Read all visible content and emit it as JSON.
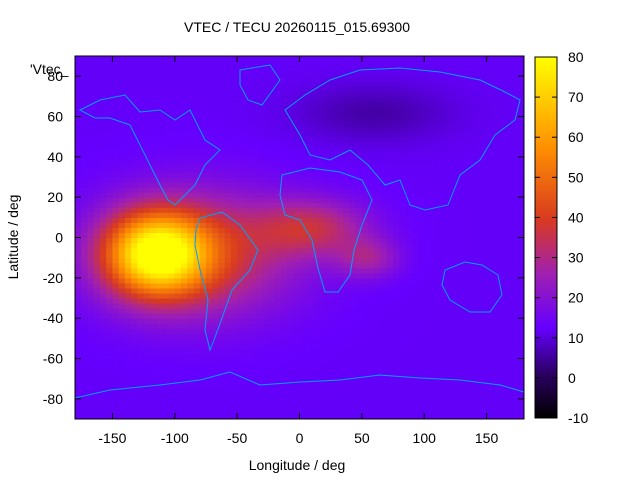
{
  "chart_data": {
    "type": "heatmap",
    "title": "VTEC / TECU 20260115_015.69300",
    "xlabel": "Longitude / deg",
    "ylabel": "Latitude / deg",
    "key_label": "'Vtec_",
    "xlim": [
      -180,
      180
    ],
    "ylim": [
      -90,
      90
    ],
    "xticks": [
      -150,
      -100,
      -50,
      0,
      50,
      100,
      150
    ],
    "yticks": [
      80,
      60,
      40,
      20,
      0,
      -20,
      -40,
      -60,
      -80
    ],
    "xtick_labels": [
      "-150",
      "-100",
      "-50",
      "0",
      "50",
      "100",
      "150"
    ],
    "ytick_labels": [
      "80",
      "60",
      "40",
      "20",
      "0",
      "-20",
      "-40",
      "-60",
      "-80"
    ],
    "colorbar": {
      "range": [
        -10,
        80
      ],
      "ticks": [
        80,
        70,
        60,
        50,
        40,
        30,
        20,
        10,
        0,
        -10
      ],
      "tick_labels": [
        "80",
        "70",
        "60",
        "50",
        "40",
        "30",
        "20",
        "10",
        "0",
        "-10"
      ]
    },
    "peak": {
      "lon": -115,
      "lat": -8,
      "value": 75
    },
    "background_value": 12,
    "coastline_color": "#00a0ff"
  }
}
